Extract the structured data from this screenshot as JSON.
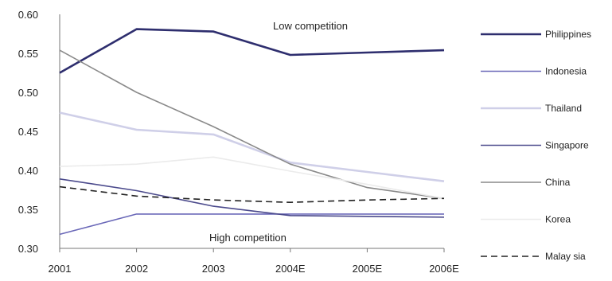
{
  "chart_data": {
    "type": "line",
    "categories": [
      "2001",
      "2002",
      "2003",
      "2004E",
      "2005E",
      "2006E"
    ],
    "ylim": [
      0.3,
      0.6
    ],
    "yticks": [
      "0.60",
      "0.55",
      "0.50",
      "0.45",
      "0.40",
      "0.35",
      "0.30"
    ],
    "annotations": {
      "top": "Low competition",
      "bottom": "High competition"
    },
    "legend_position": "right",
    "series": [
      {
        "name": "Philippines",
        "values": [
          0.525,
          0.581,
          0.578,
          0.548,
          0.551,
          0.554
        ],
        "color": "#2e2e6e",
        "dash": "solid",
        "weight": "thick"
      },
      {
        "name": "Indonesia",
        "values": [
          0.318,
          0.344,
          0.344,
          0.344,
          0.344,
          0.344
        ],
        "color": "#6a68b8",
        "dash": "solid",
        "weight": "normal"
      },
      {
        "name": "Thailand",
        "values": [
          0.474,
          0.452,
          0.446,
          0.41,
          0.398,
          0.386
        ],
        "color": "#cfcfe8",
        "dash": "solid",
        "weight": "thick"
      },
      {
        "name": "Singapore",
        "values": [
          0.389,
          0.374,
          0.354,
          0.342,
          0.341,
          0.34
        ],
        "color": "#4b4a8c",
        "dash": "solid",
        "weight": "normal"
      },
      {
        "name": "China",
        "values": [
          0.554,
          0.5,
          0.456,
          0.408,
          0.378,
          0.364
        ],
        "color": "#8a8a8a",
        "dash": "solid",
        "weight": "normal"
      },
      {
        "name": "Korea",
        "values": [
          0.405,
          0.408,
          0.417,
          0.399,
          0.382,
          0.364
        ],
        "color": "#ebebeb",
        "dash": "solid",
        "weight": "normal"
      },
      {
        "name": "Malaysia",
        "values": [
          0.379,
          0.367,
          0.362,
          0.359,
          0.362,
          0.364
        ],
        "color": "#222222",
        "dash": "dashed",
        "weight": "normal"
      }
    ],
    "legend_labels": [
      "Philippines",
      "Indonesia",
      "Thailand",
      "Singapore",
      "China",
      "Korea",
      "Malay sia"
    ]
  }
}
